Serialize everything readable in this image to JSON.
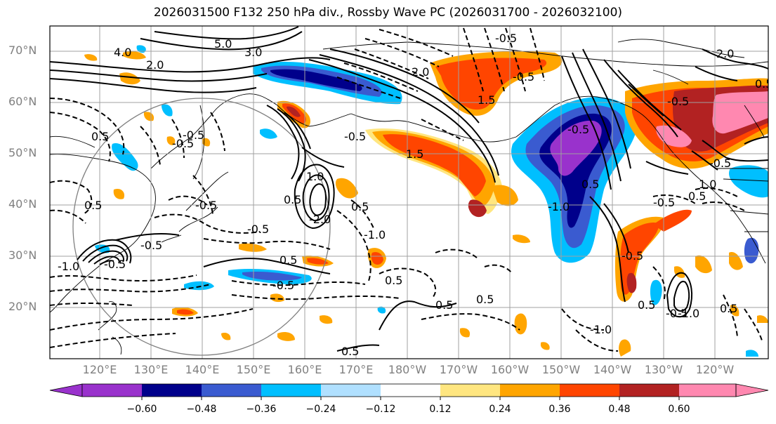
{
  "title": "2026031500 F132 250 hPa div., Rossby Wave PC (2026031700 - 2026032100)",
  "lat_labels": [
    "70°N",
    "60°N",
    "50°N",
    "40°N",
    "30°N",
    "20°N"
  ],
  "lon_labels": [
    "120°E",
    "130°E",
    "140°E",
    "150°E",
    "160°E",
    "170°E",
    "180°W",
    "170°W",
    "160°W",
    "150°W",
    "140°W",
    "130°W",
    "120°W"
  ],
  "colorbar": {
    "ticks": [
      "−0.60",
      "−0.48",
      "−0.36",
      "−0.24",
      "−0.12",
      "0.12",
      "0.24",
      "0.36",
      "0.48",
      "0.60"
    ],
    "colors": [
      "#9932cc",
      "#00008b",
      "#3a5bd0",
      "#00bfff",
      "#b0e0ff",
      "#ffffff",
      "#ffe680",
      "#ffa500",
      "#ff4500",
      "#b22222",
      "#ff88b0",
      "#ff88b0"
    ]
  },
  "contour_labels": [
    "4.0",
    "5.0",
    "3.0",
    "2.0",
    "-0.5",
    "2.0",
    "-0.5",
    "1.5",
    "-0.5",
    "-0.5",
    "1.0",
    "0.5",
    "-2.0",
    "0.5",
    "-1.0",
    "-0.5",
    "-0.5",
    "0.5",
    "-0.5",
    "-0.5",
    "-1.0",
    "0.5",
    "-0.5",
    "0.5",
    "0.5",
    "0.5",
    "0.5",
    "-1.0",
    "-0.5",
    "-1.0",
    "0.5",
    "1.0",
    "0.5",
    "-0.5",
    "-0.5",
    "0.5",
    "2.0",
    "-0.5",
    "-0.5",
    "0.5",
    "-1.0",
    "-0.5",
    "0.5",
    "0.5",
    "-0.5",
    "1.5"
  ]
}
